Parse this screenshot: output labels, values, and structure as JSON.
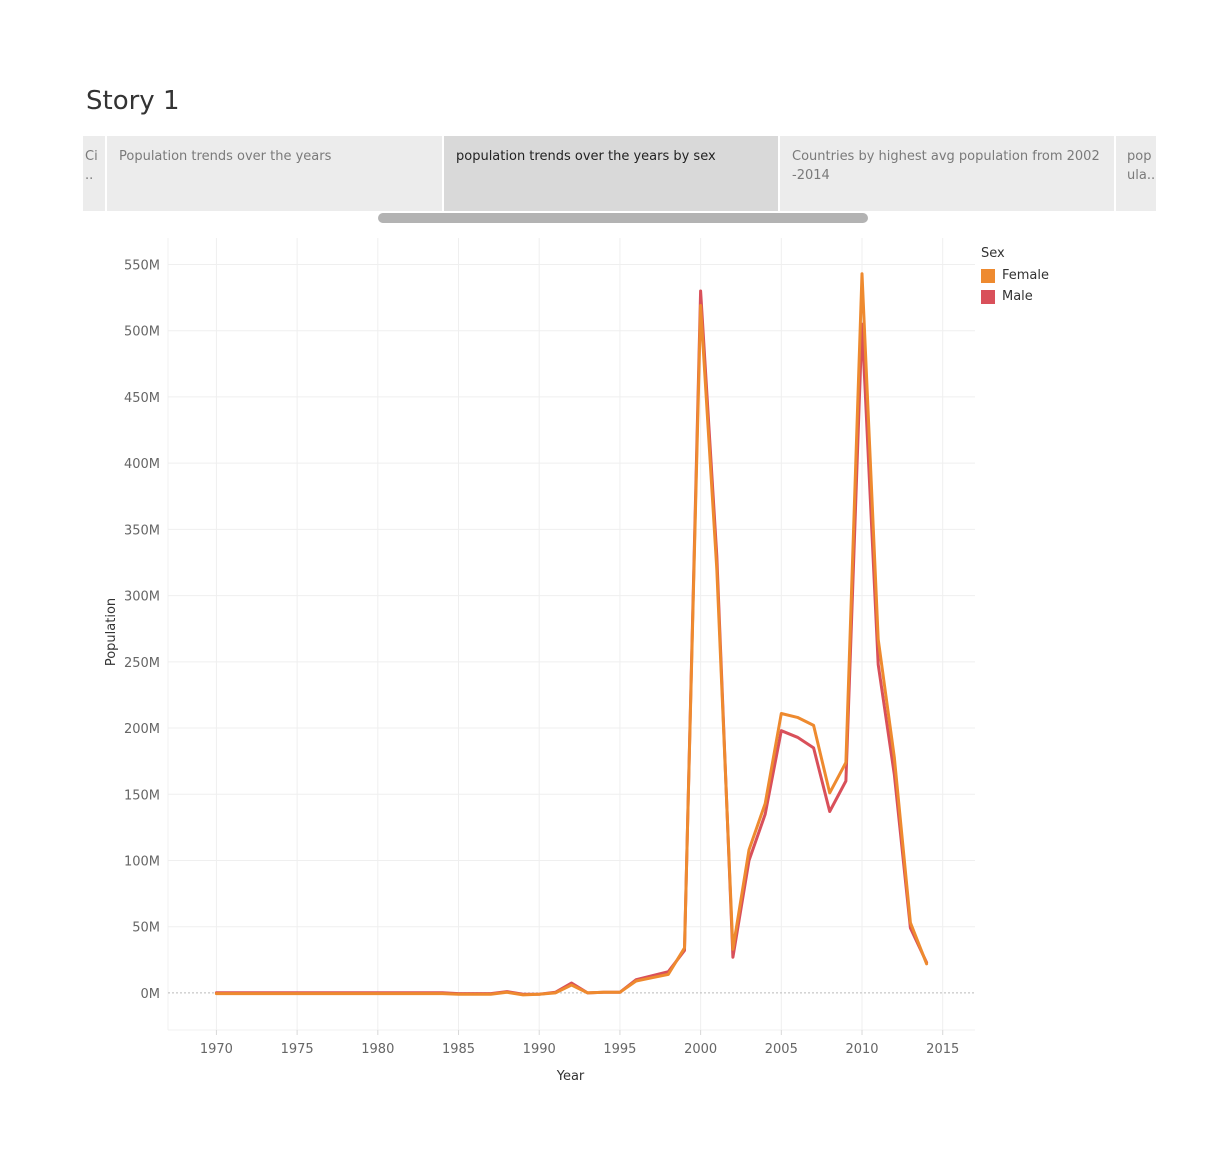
{
  "story": {
    "title": "Story 1"
  },
  "tabs": [
    {
      "label": "Ci\n..",
      "active": false
    },
    {
      "label": "Population trends over the years",
      "active": false
    },
    {
      "label": "population trends over the years by sex",
      "active": true
    },
    {
      "label": "Countries by highest avg population from 2002\n-2014",
      "active": false
    },
    {
      "label": "pop\nula..",
      "active": false
    }
  ],
  "legend": {
    "title": "Sex"
  },
  "chart_data": {
    "type": "line",
    "xlabel": "Year",
    "ylabel": "Population",
    "xlim": [
      1967,
      2017
    ],
    "ylim": [
      -28000000,
      570000000
    ],
    "x_ticks": [
      1970,
      1975,
      1980,
      1985,
      1990,
      1995,
      2000,
      2005,
      2010,
      2015
    ],
    "y_ticks": [
      0,
      50000000,
      100000000,
      150000000,
      200000000,
      250000000,
      300000000,
      350000000,
      400000000,
      450000000,
      500000000,
      550000000
    ],
    "y_tick_labels": [
      "0M",
      "50M",
      "100M",
      "150M",
      "200M",
      "250M",
      "300M",
      "350M",
      "400M",
      "450M",
      "500M",
      "550M"
    ],
    "x_tick_labels": [
      "1970",
      "1975",
      "1980",
      "1985",
      "1990",
      "1995",
      "2000",
      "2005",
      "2010",
      "2015"
    ],
    "legend_position": "top-right",
    "grid": true,
    "x": [
      1970,
      1971,
      1972,
      1973,
      1974,
      1975,
      1976,
      1977,
      1978,
      1979,
      1980,
      1981,
      1982,
      1983,
      1984,
      1985,
      1986,
      1987,
      1988,
      1989,
      1990,
      1991,
      1992,
      1993,
      1994,
      1995,
      1996,
      1997,
      1998,
      1999,
      2000,
      2001,
      2002,
      2003,
      2004,
      2005,
      2006,
      2007,
      2008,
      2009,
      2010,
      2011,
      2012,
      2013,
      2014
    ],
    "series": [
      {
        "name": "Male",
        "color": "#d9505a",
        "values": [
          200000,
          200000,
          200000,
          200000,
          200000,
          200000,
          200000,
          200000,
          200000,
          200000,
          200000,
          200000,
          200000,
          200000,
          200000,
          -500000,
          -500000,
          -500000,
          1000000,
          -1000000,
          -1000000,
          500000,
          7500000,
          0,
          500000,
          500000,
          10000000,
          13000000,
          16000000,
          32000000,
          530000000,
          330000000,
          27000000,
          100000000,
          135000000,
          198000000,
          193000000,
          185000000,
          137000000,
          160000000,
          505000000,
          248000000,
          165000000,
          49000000,
          23000000
        ]
      },
      {
        "name": "Female",
        "color": "#ee8a2f",
        "values": [
          -500000,
          -500000,
          -500000,
          -500000,
          -500000,
          -500000,
          -500000,
          -500000,
          -500000,
          -500000,
          -500000,
          -500000,
          -500000,
          -500000,
          -500000,
          -1000000,
          -1000000,
          -1000000,
          500000,
          -1500000,
          -1000000,
          0,
          6000000,
          0,
          500000,
          500000,
          9000000,
          11500000,
          14000000,
          34000000,
          519000000,
          320000000,
          33000000,
          108000000,
          143000000,
          211000000,
          208000000,
          202000000,
          151000000,
          174000000,
          543000000,
          267000000,
          178000000,
          53000000,
          22000000
        ]
      }
    ]
  }
}
